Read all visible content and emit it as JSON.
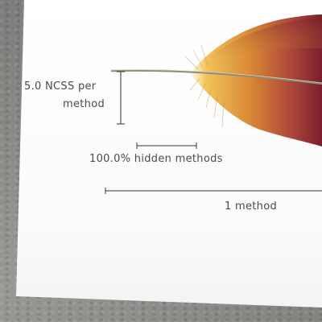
{
  "labels": {
    "ncss_line1": "5.0 NCSS per",
    "ncss_line2": "method",
    "hidden": "100.0% hidden methods",
    "methods": "1 method"
  },
  "colors": {
    "feather_base": "#e3a640",
    "feather_tip": "#7a1e2c",
    "stroke": "#333333",
    "background": "#8a8886",
    "card": "#ffffff"
  }
}
